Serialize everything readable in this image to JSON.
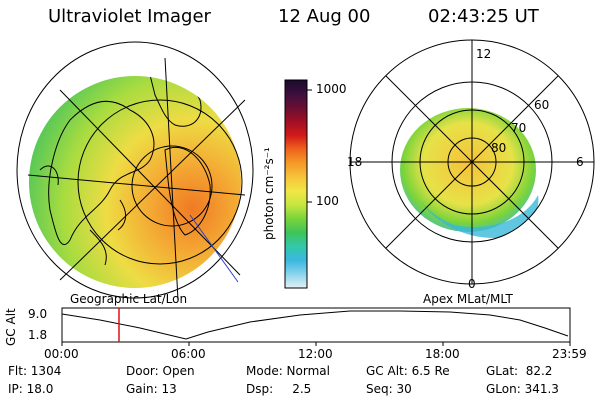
{
  "header": {
    "title": "Ultraviolet Imager",
    "date": "12 Aug 00",
    "time": "02:43:25 UT"
  },
  "colorbar": {
    "unit_label": "photon cm⁻²s⁻¹",
    "tick_labels": [
      "1000",
      "100"
    ],
    "stops": [
      "#1a0a2e",
      "#3c0f3c",
      "#6a0f34",
      "#a00f24",
      "#d21a1a",
      "#f0641e",
      "#f59a28",
      "#f7c23a",
      "#f2e646",
      "#c8e640",
      "#7ad43a",
      "#3ec45a",
      "#32c8a8",
      "#3ab8e0",
      "#8ad4ec",
      "#e6f0f4"
    ]
  },
  "left_panel": {
    "caption": "Geographic Lat/Lon"
  },
  "right_panel": {
    "caption": "Apex MLat/MLT",
    "lat_labels": [
      "60",
      "70",
      "80"
    ],
    "mlt_labels": [
      "12",
      "18",
      "6",
      "0"
    ]
  },
  "timeline": {
    "ylabel": "GC Alt",
    "y_ticks": [
      "9.0",
      "1.8"
    ],
    "x_ticks": [
      "00:00",
      "06:00",
      "12:00",
      "18:00",
      "23:59"
    ],
    "marker_color": "#e01010"
  },
  "footer": {
    "flt": "Flt: 1304",
    "door": "Door: Open",
    "mode": "Mode: Normal",
    "gc_alt": "GC Alt: 6.5 Re",
    "glat": "GLat:  82.2",
    "ip": "IP: 18.0",
    "gain": "Gain: 13",
    "dsp": "Dsp:     2.5",
    "seq": "Seq: 30",
    "glon": "GLon: 341.3"
  }
}
